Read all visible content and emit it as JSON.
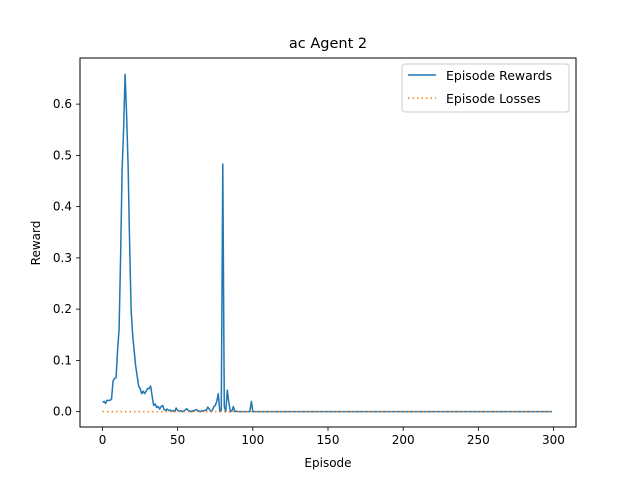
{
  "chart_data": {
    "type": "line",
    "title": "ac Agent 2",
    "xlabel": "Episode",
    "ylabel": "Reward",
    "xlim": [
      -15,
      315
    ],
    "ylim": [
      -0.03,
      0.69
    ],
    "xticks": [
      0,
      50,
      100,
      150,
      200,
      250,
      300
    ],
    "yticks": [
      0.0,
      0.1,
      0.2,
      0.3,
      0.4,
      0.5,
      0.6
    ],
    "ytick_labels": [
      "0.0",
      "0.1",
      "0.2",
      "0.3",
      "0.4",
      "0.5",
      "0.6"
    ],
    "grid": false,
    "legend_position": "top-right",
    "series": [
      {
        "name": "Episode Rewards",
        "color": "#1f77b4",
        "style": "solid",
        "points": [
          [
            0,
            0.018
          ],
          [
            1,
            0.02
          ],
          [
            2,
            0.016
          ],
          [
            3,
            0.022
          ],
          [
            4,
            0.022
          ],
          [
            5,
            0.022
          ],
          [
            6,
            0.025
          ],
          [
            7,
            0.06
          ],
          [
            8,
            0.065
          ],
          [
            9,
            0.066
          ],
          [
            10,
            0.12
          ],
          [
            11,
            0.16
          ],
          [
            12,
            0.3
          ],
          [
            13,
            0.47
          ],
          [
            14,
            0.55
          ],
          [
            15,
            0.658
          ],
          [
            16,
            0.58
          ],
          [
            17,
            0.48
          ],
          [
            18,
            0.33
          ],
          [
            19,
            0.2
          ],
          [
            20,
            0.15
          ],
          [
            21,
            0.12
          ],
          [
            22,
            0.09
          ],
          [
            23,
            0.07
          ],
          [
            24,
            0.05
          ],
          [
            25,
            0.045
          ],
          [
            26,
            0.035
          ],
          [
            27,
            0.04
          ],
          [
            28,
            0.035
          ],
          [
            29,
            0.04
          ],
          [
            30,
            0.045
          ],
          [
            31,
            0.045
          ],
          [
            32,
            0.05
          ],
          [
            33,
            0.03
          ],
          [
            34,
            0.012
          ],
          [
            35,
            0.015
          ],
          [
            36,
            0.008
          ],
          [
            37,
            0.01
          ],
          [
            38,
            0.005
          ],
          [
            39,
            0.01
          ],
          [
            40,
            0.012
          ],
          [
            41,
            0.004
          ],
          [
            42,
            0.002
          ],
          [
            43,
            0.005
          ],
          [
            44,
            0.002
          ],
          [
            45,
            0.003
          ],
          [
            46,
            0.001
          ],
          [
            47,
            0.002
          ],
          [
            48,
            0.0
          ],
          [
            49,
            0.007
          ],
          [
            50,
            0.002
          ],
          [
            51,
            0.001
          ],
          [
            52,
            0.002
          ],
          [
            53,
            0.0
          ],
          [
            54,
            0.001
          ],
          [
            55,
            0.003
          ],
          [
            56,
            0.006
          ],
          [
            57,
            0.002
          ],
          [
            58,
            0.001
          ],
          [
            59,
            0.0
          ],
          [
            60,
            0.002
          ],
          [
            61,
            0.001
          ],
          [
            62,
            0.004
          ],
          [
            63,
            0.003
          ],
          [
            64,
            0.001
          ],
          [
            65,
            0.0
          ],
          [
            66,
            0.002
          ],
          [
            67,
            0.001
          ],
          [
            68,
            0.003
          ],
          [
            69,
            0.002
          ],
          [
            70,
            0.009
          ],
          [
            71,
            0.005
          ],
          [
            72,
            0.0
          ],
          [
            73,
            0.002
          ],
          [
            74,
            0.01
          ],
          [
            75,
            0.012
          ],
          [
            76,
            0.02
          ],
          [
            77,
            0.035
          ],
          [
            78,
            0.0
          ],
          [
            79,
            0.002
          ],
          [
            80,
            0.483
          ],
          [
            81,
            0.01
          ],
          [
            82,
            0.0
          ],
          [
            83,
            0.042
          ],
          [
            84,
            0.018
          ],
          [
            85,
            0.0
          ],
          [
            86,
            0.001
          ],
          [
            87,
            0.01
          ],
          [
            88,
            0.0
          ],
          [
            89,
            0.001
          ],
          [
            90,
            0.0
          ],
          [
            91,
            0.0
          ],
          [
            92,
            0.0
          ],
          [
            93,
            0.0
          ],
          [
            94,
            0.0
          ],
          [
            95,
            0.0
          ],
          [
            96,
            0.0
          ],
          [
            97,
            0.0
          ],
          [
            98,
            0.0
          ],
          [
            99,
            0.02
          ],
          [
            100,
            0.0
          ],
          [
            101,
            0.0
          ],
          [
            102,
            0.0
          ],
          [
            110,
            0.0
          ],
          [
            120,
            0.0
          ],
          [
            130,
            0.0
          ],
          [
            140,
            0.0
          ],
          [
            150,
            0.0
          ],
          [
            160,
            0.0
          ],
          [
            170,
            0.0
          ],
          [
            180,
            0.0
          ],
          [
            190,
            0.0
          ],
          [
            200,
            0.0
          ],
          [
            210,
            0.0
          ],
          [
            220,
            0.0
          ],
          [
            230,
            0.0
          ],
          [
            240,
            0.0
          ],
          [
            250,
            0.0
          ],
          [
            260,
            0.0
          ],
          [
            270,
            0.0
          ],
          [
            280,
            0.0
          ],
          [
            290,
            0.0
          ],
          [
            299,
            0.0
          ]
        ]
      },
      {
        "name": "Episode Losses",
        "color": "#ff7f0e",
        "style": "dotted",
        "points": [
          [
            0,
            0.0
          ],
          [
            299,
            0.0
          ]
        ]
      }
    ]
  }
}
